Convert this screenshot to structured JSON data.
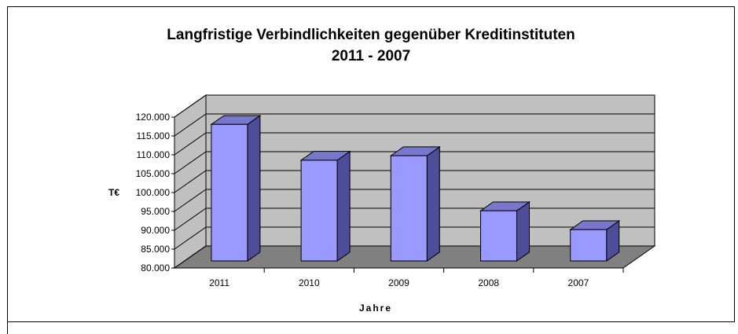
{
  "chart_data": {
    "type": "bar3d",
    "title": "Langfristige Verbindlichkeiten gegenüber Kreditinstituten",
    "subtitle": "2011 - 2007",
    "x_label": "Jahre",
    "y_label": "T€",
    "categories": [
      "2011",
      "2010",
      "2009",
      "2008",
      "2007"
    ],
    "values": [
      116200,
      106700,
      107900,
      93300,
      88300
    ],
    "color": "#9999ff",
    "ylim": [
      80000,
      120000
    ],
    "yticks": [
      {
        "value": 80000,
        "label": "80.000"
      },
      {
        "value": 85000,
        "label": "85.000"
      },
      {
        "value": 90000,
        "label": "90.000"
      },
      {
        "value": 95000,
        "label": "95.000"
      },
      {
        "value": 100000,
        "label": "100.000"
      },
      {
        "value": 105000,
        "label": "105.000"
      },
      {
        "value": 110000,
        "label": "110.000"
      },
      {
        "value": 115000,
        "label": "115.000"
      },
      {
        "value": 120000,
        "label": "120.000"
      }
    ],
    "grid": true
  }
}
